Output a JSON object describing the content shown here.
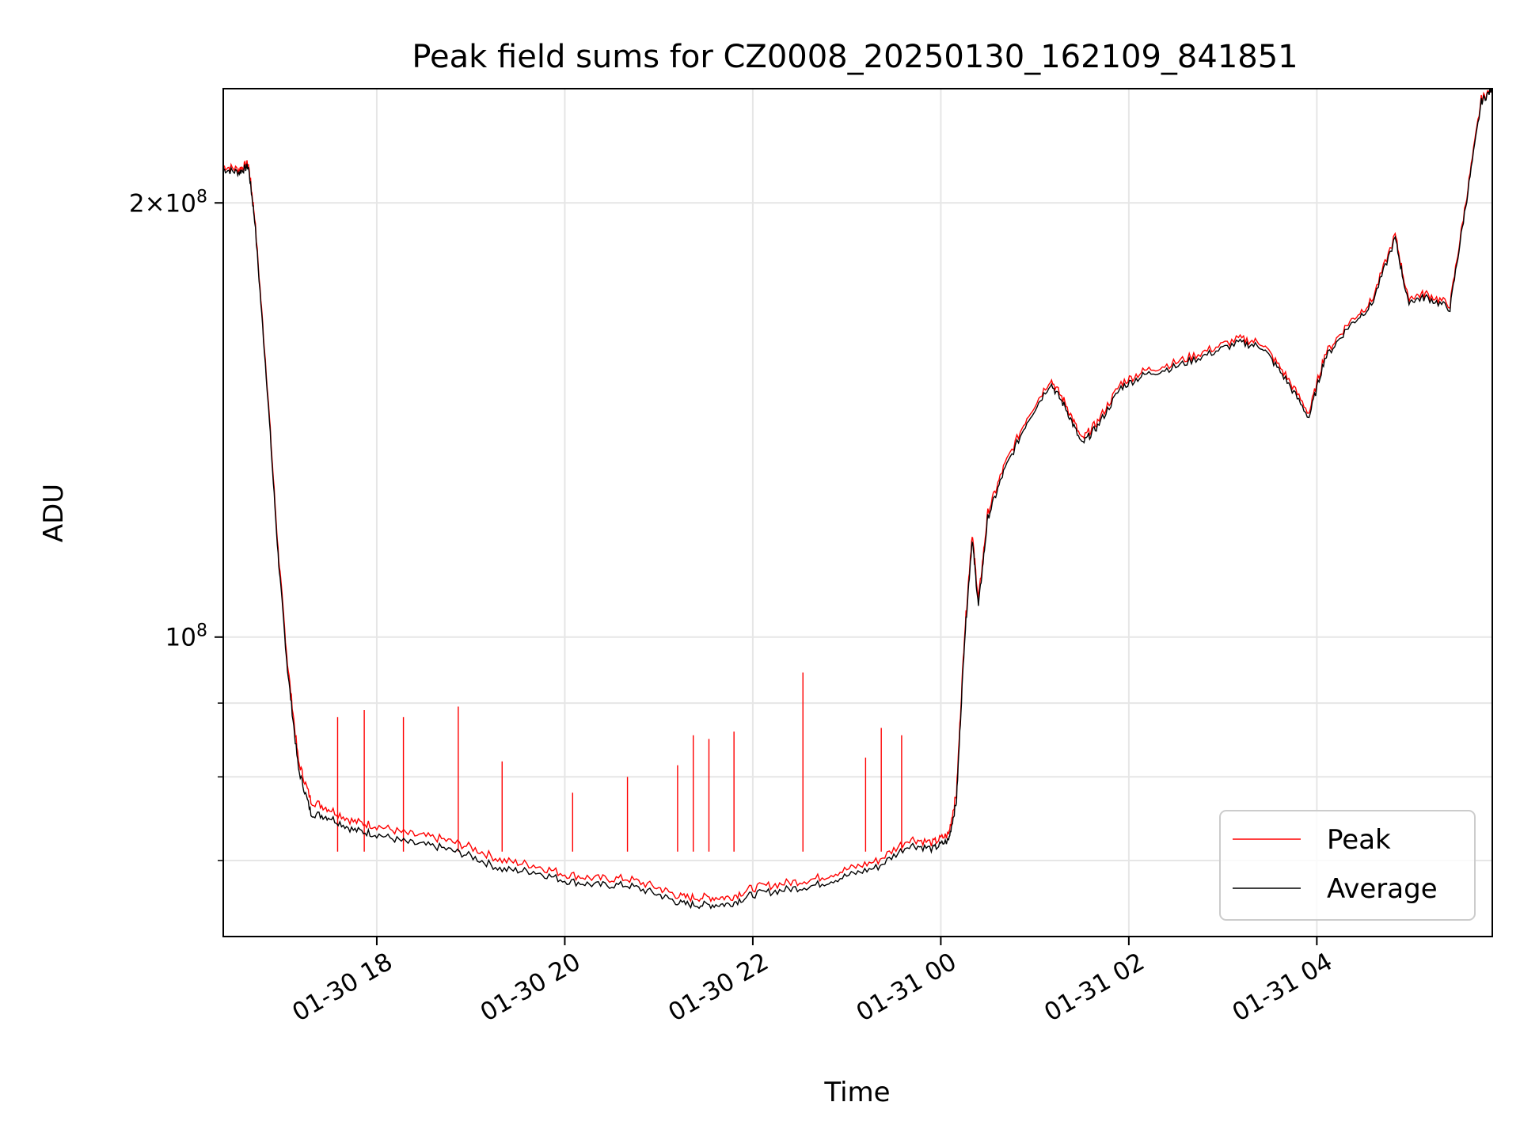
{
  "chart_data": {
    "type": "line",
    "title": "Peak field sums for CZ0008_20250130_162109_841851",
    "xlabel": "Time",
    "ylabel": "ADU",
    "yscale": "log",
    "ylim": [
      62000000,
      240000000
    ],
    "xlim": [
      "2025-01-30 16:22",
      "2025-01-31 05:52"
    ],
    "xticks": [
      {
        "at": "2025-01-30 18:00",
        "label": "01-30 18"
      },
      {
        "at": "2025-01-30 20:00",
        "label": "01-30 20"
      },
      {
        "at": "2025-01-30 22:00",
        "label": "01-30 22"
      },
      {
        "at": "2025-01-31 00:00",
        "label": "01-31 00"
      },
      {
        "at": "2025-01-31 02:00",
        "label": "01-31 02"
      },
      {
        "at": "2025-01-31 04:00",
        "label": "01-31 04"
      }
    ],
    "yticks_major": [
      {
        "value": 100000000,
        "base": "10",
        "exp": "8",
        "coef": ""
      },
      {
        "value": 200000000,
        "base": "10",
        "exp": "8",
        "coef": "2"
      }
    ],
    "yticks_minor": [
      60000000,
      70000000,
      80000000,
      90000000
    ],
    "grid": true,
    "legend_position": "lower-right",
    "series": [
      {
        "name": "Peak",
        "color": "#ff0000",
        "points": [
          [
            "2025-01-30 16:22",
            212000000
          ],
          [
            "2025-01-30 16:32",
            211000000
          ],
          [
            "2025-01-30 16:38",
            213000000
          ],
          [
            "2025-01-30 16:42",
            196000000
          ],
          [
            "2025-01-30 16:50",
            150000000
          ],
          [
            "2025-01-30 16:57",
            115000000
          ],
          [
            "2025-01-30 17:03",
            96000000
          ],
          [
            "2025-01-30 17:10",
            82000000
          ],
          [
            "2025-01-30 17:18",
            77000000
          ],
          [
            "2025-01-30 17:30",
            76000000
          ],
          [
            "2025-01-30 17:45",
            74500000
          ],
          [
            "2025-01-30 18:00",
            74000000
          ],
          [
            "2025-01-30 18:20",
            73000000
          ],
          [
            "2025-01-30 18:40",
            72500000
          ],
          [
            "2025-01-30 19:00",
            71500000
          ],
          [
            "2025-01-30 19:20",
            70000000
          ],
          [
            "2025-01-30 19:40",
            69500000
          ],
          [
            "2025-01-30 20:00",
            68500000
          ],
          [
            "2025-01-30 20:20",
            68000000
          ],
          [
            "2025-01-30 20:40",
            68000000
          ],
          [
            "2025-01-30 21:00",
            67000000
          ],
          [
            "2025-01-30 21:15",
            66000000
          ],
          [
            "2025-01-30 21:30",
            66000000
          ],
          [
            "2025-01-30 21:45",
            66000000
          ],
          [
            "2025-01-30 22:00",
            67000000
          ],
          [
            "2025-01-30 22:20",
            67500000
          ],
          [
            "2025-01-30 22:40",
            68000000
          ],
          [
            "2025-01-30 23:00",
            69000000
          ],
          [
            "2025-01-30 23:20",
            70000000
          ],
          [
            "2025-01-30 23:40",
            72500000
          ],
          [
            "2025-01-30 23:55",
            72000000
          ],
          [
            "2025-01-31 00:05",
            73000000
          ],
          [
            "2025-01-31 00:10",
            78000000
          ],
          [
            "2025-01-31 00:15",
            100000000
          ],
          [
            "2025-01-31 00:20",
            118000000
          ],
          [
            "2025-01-31 00:24",
            106000000
          ],
          [
            "2025-01-31 00:30",
            122000000
          ],
          [
            "2025-01-31 00:40",
            131000000
          ],
          [
            "2025-01-31 00:55",
            142000000
          ],
          [
            "2025-01-31 01:10",
            151000000
          ],
          [
            "2025-01-31 01:20",
            145000000
          ],
          [
            "2025-01-31 01:30",
            137000000
          ],
          [
            "2025-01-31 01:40",
            141000000
          ],
          [
            "2025-01-31 01:55",
            150000000
          ],
          [
            "2025-01-31 02:10",
            153000000
          ],
          [
            "2025-01-31 02:30",
            155000000
          ],
          [
            "2025-01-31 02:50",
            158000000
          ],
          [
            "2025-01-31 03:10",
            161000000
          ],
          [
            "2025-01-31 03:25",
            160000000
          ],
          [
            "2025-01-31 03:40",
            152000000
          ],
          [
            "2025-01-31 03:55",
            143000000
          ],
          [
            "2025-01-31 04:05",
            157000000
          ],
          [
            "2025-01-31 04:20",
            165000000
          ],
          [
            "2025-01-31 04:35",
            171000000
          ],
          [
            "2025-01-31 04:50",
            190000000
          ],
          [
            "2025-01-31 04:58",
            172000000
          ],
          [
            "2025-01-31 05:10",
            173000000
          ],
          [
            "2025-01-31 05:25",
            170000000
          ],
          [
            "2025-01-31 05:35",
            200000000
          ],
          [
            "2025-01-31 05:45",
            236000000
          ],
          [
            "2025-01-31 05:52",
            240000000
          ]
        ]
      },
      {
        "name": "Average",
        "color": "#000000",
        "points": [
          [
            "2025-01-30 16:22",
            211000000
          ],
          [
            "2025-01-30 16:32",
            210000000
          ],
          [
            "2025-01-30 16:38",
            212000000
          ],
          [
            "2025-01-30 16:42",
            195000000
          ],
          [
            "2025-01-30 16:50",
            149000000
          ],
          [
            "2025-01-30 16:57",
            114000000
          ],
          [
            "2025-01-30 17:03",
            95000000
          ],
          [
            "2025-01-30 17:10",
            81000000
          ],
          [
            "2025-01-30 17:18",
            75500000
          ],
          [
            "2025-01-30 17:30",
            75000000
          ],
          [
            "2025-01-30 17:45",
            73500000
          ],
          [
            "2025-01-30 18:00",
            73000000
          ],
          [
            "2025-01-30 18:20",
            72000000
          ],
          [
            "2025-01-30 18:40",
            71500000
          ],
          [
            "2025-01-30 19:00",
            70500000
          ],
          [
            "2025-01-30 19:20",
            69000000
          ],
          [
            "2025-01-30 19:40",
            68800000
          ],
          [
            "2025-01-30 20:00",
            67800000
          ],
          [
            "2025-01-30 20:20",
            67300000
          ],
          [
            "2025-01-30 20:40",
            67300000
          ],
          [
            "2025-01-30 21:00",
            66300000
          ],
          [
            "2025-01-30 21:15",
            65300000
          ],
          [
            "2025-01-30 21:30",
            65200000
          ],
          [
            "2025-01-30 21:45",
            65300000
          ],
          [
            "2025-01-30 22:00",
            66300000
          ],
          [
            "2025-01-30 22:20",
            66800000
          ],
          [
            "2025-01-30 22:40",
            67300000
          ],
          [
            "2025-01-30 23:00",
            68300000
          ],
          [
            "2025-01-30 23:20",
            69300000
          ],
          [
            "2025-01-30 23:40",
            71800000
          ],
          [
            "2025-01-30 23:55",
            71300000
          ],
          [
            "2025-01-31 00:05",
            72300000
          ],
          [
            "2025-01-31 00:10",
            77000000
          ],
          [
            "2025-01-31 00:15",
            99000000
          ],
          [
            "2025-01-31 00:20",
            117000000
          ],
          [
            "2025-01-31 00:24",
            105000000
          ],
          [
            "2025-01-31 00:30",
            121000000
          ],
          [
            "2025-01-31 00:40",
            130000000
          ],
          [
            "2025-01-31 00:55",
            141000000
          ],
          [
            "2025-01-31 01:10",
            150000000
          ],
          [
            "2025-01-31 01:20",
            144000000
          ],
          [
            "2025-01-31 01:30",
            136000000
          ],
          [
            "2025-01-31 01:40",
            140000000
          ],
          [
            "2025-01-31 01:55",
            149000000
          ],
          [
            "2025-01-31 02:10",
            152000000
          ],
          [
            "2025-01-31 02:30",
            154000000
          ],
          [
            "2025-01-31 02:50",
            157000000
          ],
          [
            "2025-01-31 03:10",
            160000000
          ],
          [
            "2025-01-31 03:25",
            159000000
          ],
          [
            "2025-01-31 03:40",
            151000000
          ],
          [
            "2025-01-31 03:55",
            142000000
          ],
          [
            "2025-01-31 04:05",
            156000000
          ],
          [
            "2025-01-31 04:20",
            164000000
          ],
          [
            "2025-01-31 04:35",
            170000000
          ],
          [
            "2025-01-31 04:50",
            189000000
          ],
          [
            "2025-01-31 04:58",
            171000000
          ],
          [
            "2025-01-31 05:10",
            172000000
          ],
          [
            "2025-01-31 05:25",
            169000000
          ],
          [
            "2025-01-31 05:35",
            199000000
          ],
          [
            "2025-01-31 05:45",
            235000000
          ],
          [
            "2025-01-31 05:52",
            240000000
          ]
        ],
        "spikes": []
      }
    ],
    "peak_spikes": [
      [
        "2025-01-30 17:35",
        88000000
      ],
      [
        "2025-01-30 17:52",
        89000000
      ],
      [
        "2025-01-30 18:17",
        88000000
      ],
      [
        "2025-01-30 18:52",
        89500000
      ],
      [
        "2025-01-30 19:20",
        82000000
      ],
      [
        "2025-01-30 20:05",
        78000000
      ],
      [
        "2025-01-30 20:40",
        80000000
      ],
      [
        "2025-01-30 21:12",
        81500000
      ],
      [
        "2025-01-30 21:22",
        85500000
      ],
      [
        "2025-01-30 21:32",
        85000000
      ],
      [
        "2025-01-30 21:48",
        86000000
      ],
      [
        "2025-01-30 22:32",
        94500000
      ],
      [
        "2025-01-30 23:12",
        82500000
      ],
      [
        "2025-01-30 23:22",
        86500000
      ],
      [
        "2025-01-30 23:35",
        85500000
      ]
    ]
  }
}
